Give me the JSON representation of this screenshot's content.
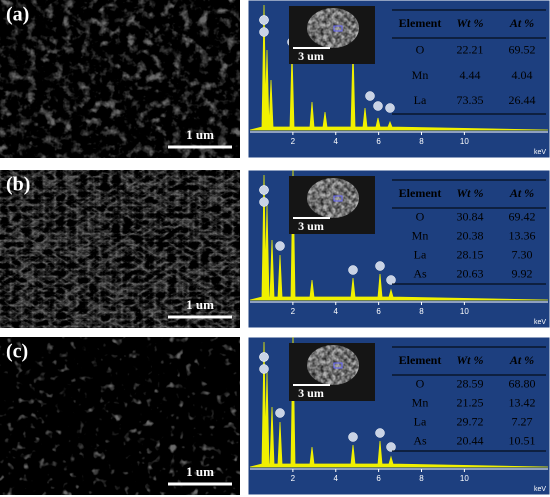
{
  "panels": [
    {
      "label": "(a)",
      "sem_scale": "1 um",
      "inset_scale": "3 um",
      "spectrum": {
        "xlim": [
          0,
          13.9
        ],
        "xticks": [
          2,
          4,
          6,
          8,
          10
        ],
        "x_unit": "keV"
      },
      "table": {
        "header": [
          "Element",
          "Wt %",
          "At %"
        ],
        "rows": [
          [
            "O",
            "22.21",
            "69.52"
          ],
          [
            "Mn",
            "4.44",
            "4.04"
          ],
          [
            "La",
            "73.35",
            "26.44"
          ]
        ]
      }
    },
    {
      "label": "(b)",
      "sem_scale": "1 um",
      "inset_scale": "3 um",
      "spectrum": {
        "xlim": [
          0,
          13.9
        ],
        "xticks": [
          2,
          4,
          6,
          8,
          10
        ],
        "x_unit": "keV"
      },
      "table": {
        "header": [
          "Element",
          "Wt %",
          "At %"
        ],
        "rows": [
          [
            "O",
            "30.84",
            "69.42"
          ],
          [
            "Mn",
            "20.38",
            "13.36"
          ],
          [
            "La",
            "28.15",
            "7.30"
          ],
          [
            "As",
            "20.63",
            "9.92"
          ]
        ]
      }
    },
    {
      "label": "(c)",
      "sem_scale": "1 um",
      "inset_scale": "3 um",
      "spectrum": {
        "xlim": [
          0,
          13.9
        ],
        "xticks": [
          2,
          4,
          6,
          8,
          10
        ],
        "x_unit": "keV"
      },
      "table": {
        "header": [
          "Element",
          "Wt %",
          "At %"
        ],
        "rows": [
          [
            "O",
            "28.59",
            "68.80"
          ],
          [
            "Mn",
            "21.25",
            "13.42"
          ],
          [
            "La",
            "29.72",
            "7.27"
          ],
          [
            "As",
            "20.44",
            "10.51"
          ]
        ]
      }
    }
  ]
}
